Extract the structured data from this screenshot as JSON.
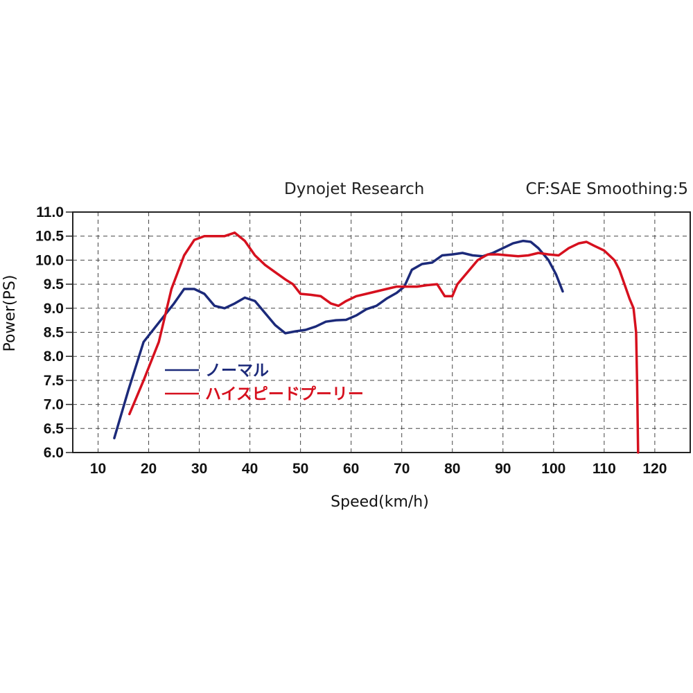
{
  "chart_data": {
    "type": "line",
    "header_left": "Dynojet Research",
    "header_right": "CF:SAE Smoothing:5",
    "xlabel": "Speed(km/h)",
    "ylabel": "Power(PS)",
    "xlim": [
      5,
      127
    ],
    "ylim": [
      6.0,
      11.0
    ],
    "xticks": [
      "10",
      "20",
      "30",
      "40",
      "50",
      "60",
      "70",
      "80",
      "90",
      "100",
      "110",
      "120"
    ],
    "xtick_values": [
      10,
      20,
      30,
      40,
      50,
      60,
      70,
      80,
      90,
      100,
      110,
      120
    ],
    "yticks": [
      "6.0",
      "6.5",
      "7.0",
      "7.5",
      "8.0",
      "8.5",
      "9.0",
      "9.5",
      "10.0",
      "10.5",
      "11.0"
    ],
    "ytick_values": [
      6.0,
      6.5,
      7.0,
      7.5,
      8.0,
      8.5,
      9.0,
      9.5,
      10.0,
      10.5,
      11.0
    ],
    "grid": true,
    "legend_position": "left-center",
    "series": [
      {
        "name": "ノーマル",
        "color": "#1c2a7a",
        "points": [
          [
            13.2,
            6.3
          ],
          [
            16,
            7.3
          ],
          [
            19,
            8.3
          ],
          [
            22,
            8.7
          ],
          [
            25,
            9.1
          ],
          [
            27,
            9.4
          ],
          [
            29,
            9.4
          ],
          [
            31,
            9.3
          ],
          [
            33,
            9.05
          ],
          [
            35,
            9.0
          ],
          [
            37,
            9.1
          ],
          [
            39,
            9.22
          ],
          [
            41,
            9.15
          ],
          [
            43,
            8.9
          ],
          [
            45,
            8.65
          ],
          [
            47,
            8.48
          ],
          [
            49,
            8.52
          ],
          [
            51,
            8.55
          ],
          [
            53,
            8.62
          ],
          [
            55,
            8.72
          ],
          [
            57,
            8.75
          ],
          [
            59,
            8.76
          ],
          [
            61,
            8.85
          ],
          [
            63,
            8.98
          ],
          [
            65,
            9.05
          ],
          [
            67,
            9.2
          ],
          [
            69,
            9.32
          ],
          [
            70.5,
            9.45
          ],
          [
            72,
            9.8
          ],
          [
            74,
            9.92
          ],
          [
            76,
            9.95
          ],
          [
            78,
            10.1
          ],
          [
            80,
            10.12
          ],
          [
            82,
            10.15
          ],
          [
            84,
            10.1
          ],
          [
            86,
            10.08
          ],
          [
            88,
            10.15
          ],
          [
            90,
            10.25
          ],
          [
            92,
            10.35
          ],
          [
            94,
            10.4
          ],
          [
            95.5,
            10.38
          ],
          [
            97,
            10.25
          ],
          [
            99,
            10.0
          ],
          [
            100.5,
            9.7
          ],
          [
            101.8,
            9.35
          ]
        ]
      },
      {
        "name": "ハイスピードプーリー",
        "color": "#d6101e",
        "points": [
          [
            16.2,
            6.8
          ],
          [
            19,
            7.5
          ],
          [
            22,
            8.3
          ],
          [
            24.5,
            9.4
          ],
          [
            27,
            10.1
          ],
          [
            29,
            10.42
          ],
          [
            31,
            10.5
          ],
          [
            33,
            10.5
          ],
          [
            35,
            10.5
          ],
          [
            37,
            10.57
          ],
          [
            39,
            10.4
          ],
          [
            41,
            10.1
          ],
          [
            43,
            9.9
          ],
          [
            45,
            9.75
          ],
          [
            47,
            9.6
          ],
          [
            48.5,
            9.5
          ],
          [
            50,
            9.3
          ],
          [
            52,
            9.28
          ],
          [
            54,
            9.25
          ],
          [
            56,
            9.1
          ],
          [
            57.5,
            9.05
          ],
          [
            59,
            9.15
          ],
          [
            61,
            9.25
          ],
          [
            63,
            9.3
          ],
          [
            65,
            9.35
          ],
          [
            67,
            9.4
          ],
          [
            69,
            9.45
          ],
          [
            71,
            9.45
          ],
          [
            73,
            9.45
          ],
          [
            75,
            9.48
          ],
          [
            77,
            9.5
          ],
          [
            78.5,
            9.25
          ],
          [
            80,
            9.25
          ],
          [
            81,
            9.5
          ],
          [
            83,
            9.75
          ],
          [
            85,
            10.0
          ],
          [
            87,
            10.12
          ],
          [
            89,
            10.12
          ],
          [
            91,
            10.1
          ],
          [
            93,
            10.08
          ],
          [
            95,
            10.1
          ],
          [
            97,
            10.15
          ],
          [
            99,
            10.12
          ],
          [
            101,
            10.1
          ],
          [
            103,
            10.25
          ],
          [
            105,
            10.35
          ],
          [
            106.5,
            10.38
          ],
          [
            108,
            10.3
          ],
          [
            110,
            10.2
          ],
          [
            112,
            10.0
          ],
          [
            113,
            9.8
          ],
          [
            114,
            9.5
          ],
          [
            115,
            9.2
          ],
          [
            115.8,
            9.0
          ],
          [
            116.3,
            8.5
          ],
          [
            116.5,
            7.5
          ],
          [
            116.7,
            6.0
          ]
        ]
      }
    ]
  }
}
